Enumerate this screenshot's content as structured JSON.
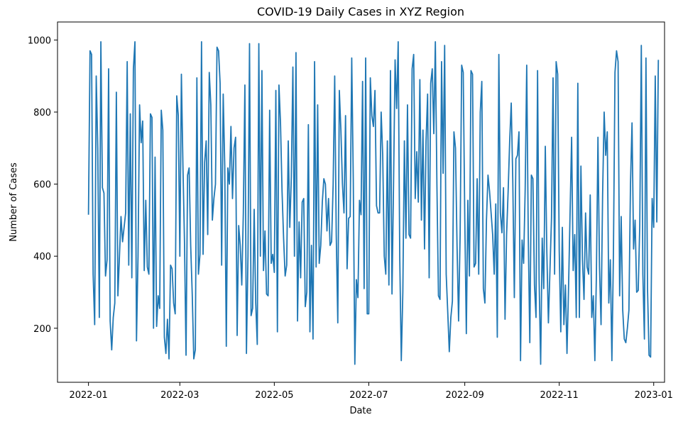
{
  "chart_data": {
    "type": "line",
    "title": "COVID-19 Daily Cases in XYZ Region",
    "xlabel": "Date",
    "ylabel": "Number of Cases",
    "x_range": [
      "2021-12-12",
      "2023-01-08"
    ],
    "ylim": [
      50,
      1050
    ],
    "x_ticks": [
      "2022-01",
      "2022-03",
      "2022-05",
      "2022-07",
      "2022-09",
      "2022-11",
      "2023-01"
    ],
    "x_tick_dates": [
      "2022-01-01",
      "2022-03-01",
      "2022-05-01",
      "2022-07-01",
      "2022-09-01",
      "2022-11-01",
      "2023-01-01"
    ],
    "y_ticks": [
      200,
      400,
      600,
      800,
      1000
    ],
    "grid": false,
    "line_color": "#1f77b4",
    "series": [
      {
        "start_date": "2022-01-01",
        "values": [
          515,
          970,
          960,
          350,
          210,
          900,
          700,
          230,
          995,
          590,
          575,
          345,
          390,
          920,
          220,
          140,
          230,
          270,
          855,
          290,
          400,
          510,
          440,
          480,
          520,
          940,
          375,
          795,
          340,
          920,
          995,
          165,
          400,
          820,
          715,
          775,
          360,
          555,
          370,
          350,
          795,
          785,
          200,
          675,
          205,
          290,
          255,
          805,
          750,
          175,
          130,
          225,
          115,
          375,
          365,
          270,
          240,
          845,
          790,
          400,
          905,
          650,
          440,
          125,
          625,
          645,
          430,
          295,
          115,
          140,
          895,
          350,
          405,
          995,
          405,
          660,
          720,
          460,
          910,
          820,
          500,
          560,
          600,
          980,
          970,
          880,
          375,
          850,
          650,
          150,
          645,
          600,
          760,
          560,
          700,
          730,
          180,
          485,
          430,
          320,
          520,
          875,
          130,
          400,
          990,
          235,
          255,
          530,
          270,
          155,
          990,
          400,
          915,
          360,
          470,
          295,
          290,
          805,
          380,
          405,
          355,
          860,
          190,
          875,
          770,
          580,
          450,
          345,
          375,
          720,
          480,
          620,
          925,
          400,
          965,
          220,
          495,
          340,
          550,
          560,
          260,
          300,
          765,
          190,
          430,
          170,
          940,
          370,
          820,
          380,
          430,
          550,
          615,
          600,
          470,
          560,
          430,
          440,
          600,
          900,
          460,
          215,
          860,
          750,
          600,
          520,
          790,
          365,
          505,
          510,
          950,
          610,
          100,
          335,
          285,
          555,
          515,
          885,
          310,
          950,
          240,
          240,
          895,
          790,
          760,
          860,
          540,
          520,
          520,
          800,
          680,
          400,
          350,
          720,
          320,
          915,
          295,
          600,
          945,
          810,
          995,
          400,
          110,
          300,
          720,
          450,
          820,
          460,
          450,
          920,
          960,
          560,
          690,
          550,
          890,
          500,
          750,
          420,
          720,
          850,
          340,
          880,
          920,
          740,
          995,
          600,
          290,
          280,
          940,
          630,
          985,
          350,
          245,
          135,
          230,
          275,
          745,
          700,
          430,
          220,
          460,
          930,
          910,
          505,
          185,
          555,
          345,
          915,
          905,
          370,
          380,
          615,
          350,
          800,
          885,
          310,
          270,
          500,
          625,
          580,
          520,
          460,
          350,
          545,
          175,
          960,
          520,
          465,
          590,
          225,
          460,
          580,
          720,
          825,
          610,
          285,
          670,
          680,
          745,
          110,
          445,
          380,
          585,
          930,
          455,
          160,
          625,
          615,
          320,
          230,
          915,
          335,
          100,
          450,
          310,
          705,
          410,
          215,
          360,
          505,
          895,
          350,
          940,
          905,
          415,
          190,
          480,
          210,
          320,
          130,
          310,
          520,
          730,
          360,
          460,
          230,
          880,
          230,
          650,
          390,
          280,
          520,
          370,
          350,
          570,
          230,
          290,
          110,
          350,
          730,
          370,
          210,
          570,
          800,
          680,
          745,
          270,
          390,
          110,
          410,
          910,
          970,
          940,
          290,
          510,
          250,
          170,
          160,
          200,
          250,
          600,
          770,
          420,
          500,
          300,
          305,
          485,
          985,
          350,
          170,
          950,
          310,
          125,
          120,
          560,
          480,
          900,
          495,
          945
        ]
      }
    ]
  }
}
